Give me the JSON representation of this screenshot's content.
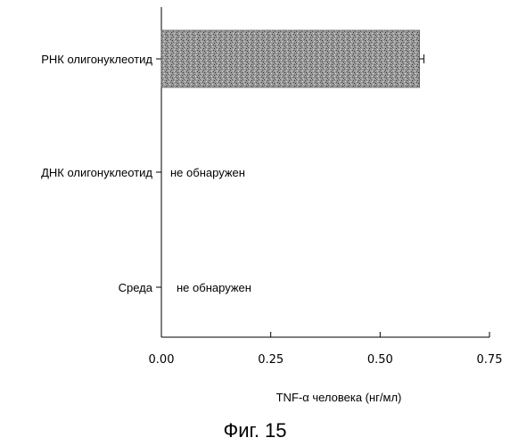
{
  "chart_data": {
    "type": "bar",
    "orientation": "horizontal",
    "categories": [
      "РНК олигонуклеотид",
      "ДНК олигонуклеотид",
      "Среда"
    ],
    "values": [
      0.59,
      null,
      null
    ],
    "error": [
      0.01,
      null,
      null
    ],
    "annotations": [
      "",
      "не обнаружен",
      "не обнаружен"
    ],
    "xlabel": "TNF-α человека  (нг/мл)",
    "ylabel": "",
    "xlim": [
      0,
      0.75
    ],
    "xticks": [
      0,
      0.25,
      0.5,
      0.75
    ],
    "xtick_labels": [
      "0.00",
      "0.25",
      "0.50",
      "0.75"
    ],
    "grid": false,
    "bar_color": "#8a8a8a",
    "bar_fill": "stippled"
  },
  "caption": "Фиг. 15"
}
